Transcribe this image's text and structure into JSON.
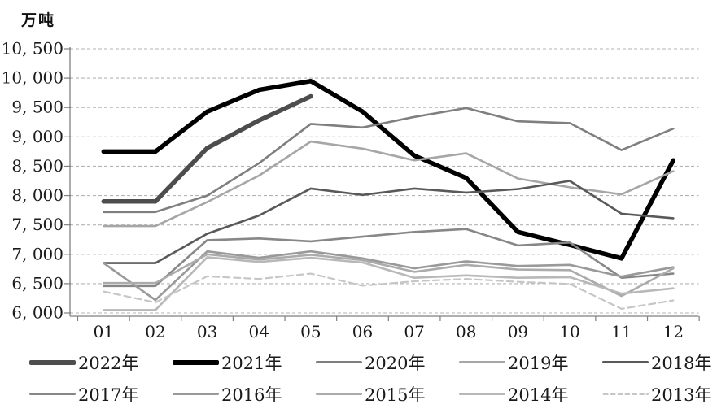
{
  "unit_label": "万吨",
  "chart_data": {
    "type": "line",
    "title": "",
    "xlabel": "",
    "ylabel": "万吨",
    "x": [
      "01",
      "02",
      "03",
      "04",
      "05",
      "06",
      "07",
      "08",
      "09",
      "10",
      "11",
      "12"
    ],
    "ylim": [
      6000,
      10500
    ],
    "ytick_step": 500,
    "yticks": [
      {
        "value": 10500,
        "label": "10, 500"
      },
      {
        "value": 10000,
        "label": "10, 000"
      },
      {
        "value": 9500,
        "label": "9, 500"
      },
      {
        "value": 9000,
        "label": "9, 000"
      },
      {
        "value": 8500,
        "label": "8, 500"
      },
      {
        "value": 8000,
        "label": "8, 000"
      },
      {
        "value": 7500,
        "label": "7, 500"
      },
      {
        "value": 7000,
        "label": "7, 000"
      },
      {
        "value": 6500,
        "label": "6, 500"
      },
      {
        "value": 6000,
        "label": "6, 000"
      }
    ],
    "grid": "horizontal-dashed",
    "grid_color": "#b3b3b3",
    "axis_color": "#7f7f7f",
    "tick_label_color": "#1a1a1a",
    "legend_position": "bottom",
    "series": [
      {
        "name": "2022年",
        "color": "#4d4d4d",
        "width": 5.5,
        "dashed": false,
        "values": [
          7900,
          7900,
          8810,
          9280,
          9690,
          null,
          null,
          null,
          null,
          null,
          null,
          null
        ]
      },
      {
        "name": "2021年",
        "color": "#000000",
        "width": 5.5,
        "dashed": false,
        "values": [
          8750,
          8750,
          9430,
          9800,
          9950,
          9430,
          8680,
          8300,
          7380,
          7160,
          6930,
          8600
        ]
      },
      {
        "name": "2020年",
        "color": "#7f7f7f",
        "width": 2.6,
        "dashed": false,
        "values": [
          7720,
          7720,
          8000,
          8550,
          9220,
          9160,
          9340,
          9490,
          9265,
          9235,
          8775,
          9140
        ]
      },
      {
        "name": "2019年",
        "color": "#a6a6a6",
        "width": 2.6,
        "dashed": false,
        "values": [
          7480,
          7480,
          7890,
          8340,
          8920,
          8800,
          8600,
          8720,
          8290,
          8140,
          8020,
          8415
        ]
      },
      {
        "name": "2018年",
        "color": "#595959",
        "width": 2.6,
        "dashed": false,
        "values": [
          6850,
          6850,
          7350,
          7660,
          8120,
          8010,
          8120,
          8050,
          8110,
          8250,
          7690,
          7615
        ]
      },
      {
        "name": "2017年",
        "color": "#878787",
        "width": 2.6,
        "dashed": false,
        "values": [
          6460,
          6460,
          7240,
          7270,
          7220,
          7300,
          7380,
          7430,
          7150,
          7200,
          6600,
          6670
        ]
      },
      {
        "name": "2016年",
        "color": "#999999",
        "width": 2.6,
        "dashed": false,
        "values": [
          6850,
          6220,
          7050,
          6940,
          7050,
          6930,
          6760,
          6880,
          6800,
          6820,
          6620,
          6780
        ]
      },
      {
        "name": "2015年",
        "color": "#ababab",
        "width": 2.6,
        "dashed": false,
        "values": [
          6510,
          6510,
          7000,
          6910,
          6990,
          6900,
          6700,
          6820,
          6740,
          6730,
          6290,
          6760
        ]
      },
      {
        "name": "2014年",
        "color": "#b8b8b8",
        "width": 2.6,
        "dashed": false,
        "values": [
          6050,
          6050,
          6950,
          6870,
          6940,
          6860,
          6600,
          6640,
          6600,
          6610,
          6330,
          6420
        ]
      },
      {
        "name": "2013年",
        "color": "#c6c6c6",
        "width": 2.2,
        "dashed": true,
        "values": [
          6365,
          6180,
          6625,
          6580,
          6670,
          6465,
          6540,
          6580,
          6530,
          6495,
          6070,
          6215
        ]
      }
    ],
    "legend_rows": [
      [
        "2022年",
        "2021年",
        "2020年",
        "2019年",
        "2018年"
      ],
      [
        "2017年",
        "2016年",
        "2015年",
        "2014年",
        "2013年"
      ]
    ]
  }
}
